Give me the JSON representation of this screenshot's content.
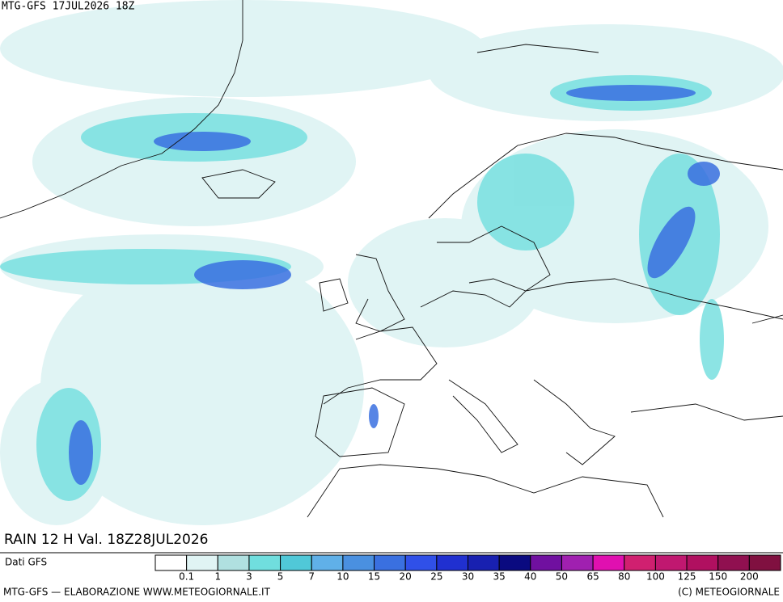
{
  "header": {
    "title": "MTG-GFS 17JUL2026 18Z"
  },
  "map": {
    "caption": "RAIN 12 H Val. 18Z28JUL2026"
  },
  "legend": {
    "source": "Dati GFS",
    "thresholds": [
      0.1,
      1,
      3,
      5,
      7,
      10,
      15,
      20,
      25,
      30,
      35,
      40,
      50,
      65,
      80,
      100,
      125,
      150,
      200
    ],
    "colors": [
      "#ffffff",
      "#e0f4f4",
      "#b0e0e0",
      "#70dede",
      "#50c8d8",
      "#60b0e8",
      "#4a90e0",
      "#3a70e0",
      "#3050e8",
      "#2030d0",
      "#1820b0",
      "#0a0a80",
      "#7010a0",
      "#a020b0",
      "#e010b0",
      "#d02070",
      "#c01870",
      "#b01060",
      "#901050",
      "#801040"
    ]
  },
  "footer": {
    "left": "MTG-GFS — ELABORAZIONE WWW.METEOGIORNALE.IT",
    "right": "(C) METEOGIORNALE"
  }
}
